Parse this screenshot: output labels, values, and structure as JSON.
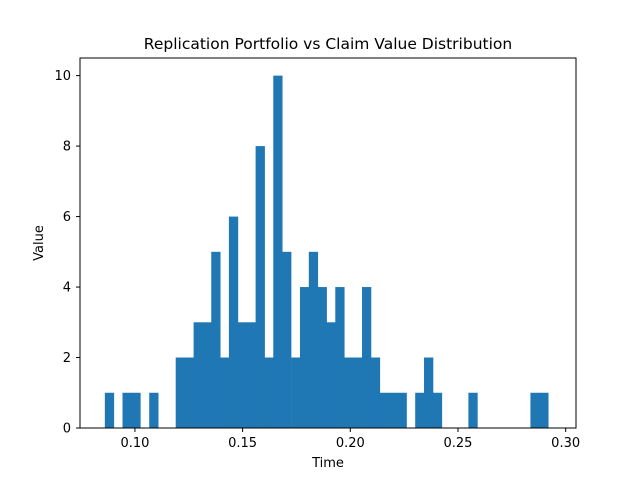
{
  "chart_data": {
    "type": "bar",
    "title": "Replication Portfolio vs Claim Value Distribution",
    "xlabel": "Time",
    "ylabel": "Value",
    "xlim": [
      0.0745,
      0.3048
    ],
    "ylim": [
      0,
      10.5
    ],
    "bin_width": 0.00412,
    "x_ticks": [
      "0.10",
      "0.15",
      "0.20",
      "0.25",
      "0.30"
    ],
    "y_ticks": [
      "0",
      "2",
      "4",
      "6",
      "8",
      "10"
    ],
    "bar_color": "#1f77b4",
    "grid": false,
    "bins": [
      {
        "x": 0.0881,
        "count": 1
      },
      {
        "x": 0.0963,
        "count": 1
      },
      {
        "x": 0.1004,
        "count": 1
      },
      {
        "x": 0.1087,
        "count": 1
      },
      {
        "x": 0.121,
        "count": 2
      },
      {
        "x": 0.1252,
        "count": 2
      },
      {
        "x": 0.1293,
        "count": 3
      },
      {
        "x": 0.1334,
        "count": 3
      },
      {
        "x": 0.1375,
        "count": 5
      },
      {
        "x": 0.1416,
        "count": 2
      },
      {
        "x": 0.1457,
        "count": 6
      },
      {
        "x": 0.1499,
        "count": 3
      },
      {
        "x": 0.154,
        "count": 3
      },
      {
        "x": 0.1581,
        "count": 8
      },
      {
        "x": 0.1622,
        "count": 2
      },
      {
        "x": 0.1663,
        "count": 10
      },
      {
        "x": 0.1704,
        "count": 5
      },
      {
        "x": 0.1746,
        "count": 2
      },
      {
        "x": 0.1787,
        "count": 4
      },
      {
        "x": 0.1828,
        "count": 5
      },
      {
        "x": 0.1869,
        "count": 4
      },
      {
        "x": 0.191,
        "count": 3
      },
      {
        "x": 0.1951,
        "count": 4
      },
      {
        "x": 0.1993,
        "count": 2
      },
      {
        "x": 0.2034,
        "count": 2
      },
      {
        "x": 0.2075,
        "count": 4
      },
      {
        "x": 0.2116,
        "count": 2
      },
      {
        "x": 0.2157,
        "count": 1
      },
      {
        "x": 0.2198,
        "count": 1
      },
      {
        "x": 0.224,
        "count": 1
      },
      {
        "x": 0.2322,
        "count": 1
      },
      {
        "x": 0.2363,
        "count": 2
      },
      {
        "x": 0.2404,
        "count": 1
      },
      {
        "x": 0.2569,
        "count": 1
      },
      {
        "x": 0.2857,
        "count": 1
      },
      {
        "x": 0.2898,
        "count": 1
      }
    ]
  }
}
